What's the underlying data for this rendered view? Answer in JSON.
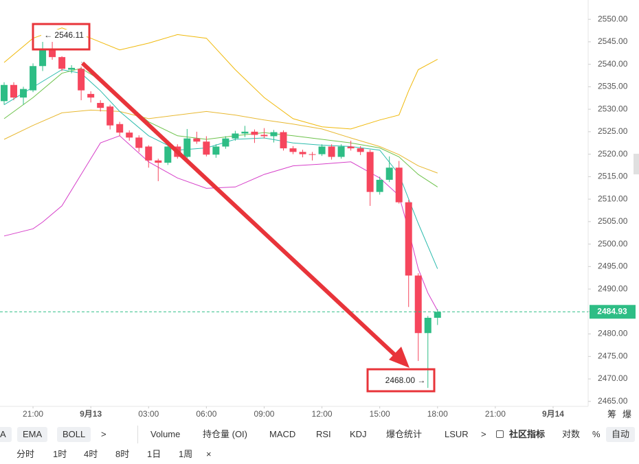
{
  "chart_data": {
    "type": "candlestick",
    "x": [
      -4.5,
      -4,
      -3.5,
      -3,
      -2.5,
      -2,
      -1.5,
      -1,
      -0.5,
      0,
      0.5,
      1,
      1.5,
      2,
      2.5,
      3,
      3.5,
      4,
      4.5,
      5,
      5.5,
      6,
      6.5,
      7,
      7.5,
      8,
      8.5,
      9,
      9.5,
      10,
      10.5,
      11,
      11.5,
      12,
      12.5,
      13,
      13.5,
      14,
      14.5,
      15,
      15.5,
      16,
      16.5,
      17,
      17.5,
      18
    ],
    "open": [
      2531.8,
      2535.4,
      2532.6,
      2534.2,
      2539.6,
      2543.5,
      2541.6,
      2538.8,
      2539.0,
      2533.4,
      2531.4,
      2530.6,
      2526.7,
      2524.8,
      2523.7,
      2521.7,
      2518.6,
      2518.1,
      2521.7,
      2519.4,
      2523.5,
      2522.8,
      2519.9,
      2521.7,
      2523.5,
      2524.6,
      2525.0,
      2524.3,
      2524.0,
      2524.9,
      2521.3,
      2520.5,
      2520.0,
      2520.0,
      2521.7,
      2519.4,
      2521.7,
      2521.3,
      2520.5,
      2511.6,
      2514.3,
      2517.0,
      2509.3,
      2493.0,
      2480.2,
      2483.6
    ],
    "high": [
      2536.0,
      2536.0,
      2535.0,
      2540.2,
      2546.11,
      2545.0,
      2541.8,
      2539.8,
      2539.5,
      2534.0,
      2532.0,
      2531.0,
      2527.2,
      2525.3,
      2524.2,
      2522.0,
      2519.0,
      2522.2,
      2522.2,
      2525.6,
      2525.0,
      2524.0,
      2522.2,
      2524.0,
      2525.2,
      2526.3,
      2525.5,
      2525.8,
      2525.4,
      2525.3,
      2521.8,
      2521.0,
      2520.5,
      2522.2,
      2522.2,
      2522.2,
      2523.0,
      2521.8,
      2521.0,
      2515.0,
      2519.5,
      2518.5,
      2509.8,
      2493.5,
      2484.0,
      2485.5
    ],
    "low": [
      2531.0,
      2532.0,
      2531.0,
      2533.8,
      2538.5,
      2541.0,
      2538.5,
      2538.0,
      2532.0,
      2531.5,
      2529.5,
      2525.5,
      2524.0,
      2523.0,
      2520.5,
      2517.0,
      2514.0,
      2517.6,
      2519.0,
      2519.0,
      2522.3,
      2519.5,
      2519.2,
      2521.2,
      2523.0,
      2523.8,
      2522.5,
      2523.5,
      2522.6,
      2520.8,
      2520.0,
      2519.3,
      2518.6,
      2519.6,
      2518.8,
      2519.0,
      2520.8,
      2519.8,
      2508.5,
      2511.0,
      2513.8,
      2509.0,
      2486.0,
      2474.0,
      2468.0,
      2482.0
    ],
    "close": [
      2535.4,
      2532.6,
      2534.5,
      2539.6,
      2543.5,
      2541.6,
      2539.0,
      2539.2,
      2534.2,
      2532.6,
      2530.3,
      2526.4,
      2524.8,
      2523.7,
      2521.4,
      2518.6,
      2518.1,
      2521.7,
      2519.4,
      2523.5,
      2522.8,
      2519.9,
      2521.7,
      2523.5,
      2524.6,
      2525.0,
      2524.3,
      2524.0,
      2524.9,
      2521.3,
      2520.5,
      2520.0,
      2519.9,
      2521.7,
      2519.4,
      2521.7,
      2521.3,
      2520.5,
      2511.6,
      2514.3,
      2517.0,
      2509.3,
      2493.0,
      2480.2,
      2483.6,
      2484.93
    ],
    "up_color": "#2ebd85",
    "down_color": "#f6465d",
    "lines": [
      {
        "color": "#f0b90b",
        "x": [
          -4.5,
          -3,
          -1.5,
          0,
          1.5,
          3,
          4.5,
          6,
          7.5,
          9,
          10.5,
          12,
          13.5,
          15,
          16,
          16.5,
          17,
          18
        ],
        "values": [
          2540.4,
          2545.8,
          2548.1,
          2545.8,
          2543.2,
          2544.7,
          2546.6,
          2545.8,
          2538.8,
          2532.6,
          2527.9,
          2526.1,
          2525.6,
          2527.6,
          2528.7,
          2534.1,
          2538.8,
          2541.1
        ]
      },
      {
        "color": "#e8b830",
        "x": [
          -4.5,
          -3,
          -1.5,
          0,
          1.5,
          3,
          4.5,
          6,
          7.5,
          9,
          10.5,
          12,
          13.5,
          15,
          16,
          17,
          18
        ],
        "values": [
          2523.3,
          2526.4,
          2529.2,
          2529.8,
          2529.5,
          2527.9,
          2528.7,
          2529.5,
          2528.7,
          2527.6,
          2526.7,
          2525.6,
          2523.6,
          2521.7,
          2519.9,
          2517.4,
          2515.8
        ]
      },
      {
        "color": "#d63fc9",
        "x": [
          -4.5,
          -3,
          -2.5,
          -1.5,
          -0.5,
          0.5,
          1.5,
          3,
          4.5,
          6,
          7.5,
          9,
          10.5,
          12,
          13.5,
          15,
          16,
          16.5,
          17,
          17.5,
          18
        ],
        "values": [
          2501.8,
          2503.4,
          2504.9,
          2508.5,
          2515.5,
          2522.5,
          2524.1,
          2518.3,
          2514.7,
          2512.4,
          2512.7,
          2515.5,
          2517.4,
          2517.8,
          2518.3,
          2514.7,
          2510.8,
          2503.1,
          2494.5,
          2489.1,
          2485.2
        ]
      },
      {
        "color": "#2bbbad",
        "x": [
          -4.5,
          -3,
          -1.5,
          -0.5,
          0.5,
          1.5,
          3,
          4.5,
          6,
          7.5,
          9,
          10.5,
          12,
          13.5,
          15,
          16,
          17,
          18
        ],
        "values": [
          2531.0,
          2534.9,
          2538.8,
          2538.0,
          2534.1,
          2529.5,
          2524.1,
          2520.9,
          2521.4,
          2523.3,
          2523.6,
          2522.5,
          2522.0,
          2521.7,
          2520.9,
          2515.5,
          2504.6,
          2494.5
        ]
      },
      {
        "color": "#6cc24a",
        "x": [
          -4.5,
          -3,
          -1.5,
          -0.5,
          0.5,
          1.5,
          3,
          4.5,
          6,
          7.5,
          9,
          10.5,
          12,
          13.5,
          15,
          16,
          17,
          18
        ],
        "values": [
          2527.9,
          2532.6,
          2538.0,
          2539.1,
          2536.5,
          2532.6,
          2527.2,
          2524.1,
          2523.3,
          2524.1,
          2524.8,
          2524.1,
          2523.3,
          2522.5,
          2521.4,
          2519.4,
          2515.5,
          2512.7
        ]
      }
    ],
    "xlim": [
      -4.714,
      25.82
    ],
    "xticks": [
      {
        "value": -3,
        "label": "21:00"
      },
      {
        "value": 0,
        "label": "9月13"
      },
      {
        "value": 3,
        "label": "03:00"
      },
      {
        "value": 6,
        "label": "06:00"
      },
      {
        "value": 9,
        "label": "09:00"
      },
      {
        "value": 12,
        "label": "12:00"
      },
      {
        "value": 15,
        "label": "15:00"
      },
      {
        "value": 18,
        "label": "18:00"
      },
      {
        "value": 21,
        "label": "21:00"
      },
      {
        "value": 24,
        "label": "9月14"
      }
    ],
    "ylim": [
      2463.9,
      2554.3
    ],
    "yticks": [
      {
        "value": 2465,
        "label": "2465.00"
      },
      {
        "value": 2470,
        "label": "2470.00"
      },
      {
        "value": 2475,
        "label": "2475.00"
      },
      {
        "value": 2480,
        "label": "2480.00"
      },
      {
        "value": 2485,
        "label": "2485.00"
      },
      {
        "value": 2490,
        "label": "2490.00"
      },
      {
        "value": 2495,
        "label": "2495.00"
      },
      {
        "value": 2500,
        "label": "2500.00"
      },
      {
        "value": 2505,
        "label": "2505.00"
      },
      {
        "value": 2510,
        "label": "2510.00"
      },
      {
        "value": 2515,
        "label": "2515.00"
      },
      {
        "value": 2520,
        "label": "2520.00"
      },
      {
        "value": 2525,
        "label": "2525.00"
      },
      {
        "value": 2530,
        "label": "2530.00"
      },
      {
        "value": 2535,
        "label": "2535.00"
      },
      {
        "value": 2540,
        "label": "2540.00"
      },
      {
        "value": 2545,
        "label": "2545.00"
      },
      {
        "value": 2550,
        "label": "2550.00"
      }
    ],
    "last_price": 2484.93,
    "high_label": "← 2546.11",
    "low_label": "2468.00 →"
  },
  "toolbar": {
    "indicators": [
      "A",
      "EMA",
      "BOLL",
      ">",
      "Volume",
      "持仓量 (OI)",
      "MACD",
      "RSI",
      "KDJ",
      "爆仓统计",
      "LSUR",
      ">",
      "社区指标",
      "对数",
      "%",
      "自动"
    ],
    "intervals": [
      "分时",
      "1时",
      "4时",
      "8时",
      "1日",
      "1周",
      "×"
    ],
    "side": [
      "筹",
      "爆"
    ]
  }
}
